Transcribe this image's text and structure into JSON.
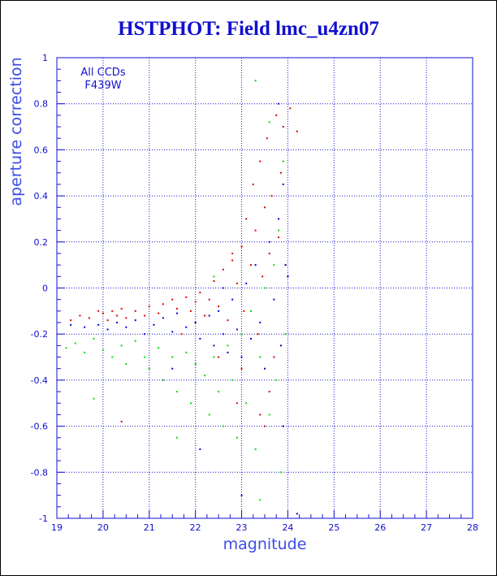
{
  "title": "HSTPHOT: Field lmc_u4zn07",
  "chart_data": {
    "type": "scatter",
    "title": "HSTPHOT: Field lmc_u4zn07",
    "xlabel": "magnitude",
    "ylabel": "aperture correction",
    "xlim": [
      19,
      28
    ],
    "ylim": [
      -1,
      1
    ],
    "xticks": [
      "19",
      "20",
      "21",
      "22",
      "23",
      "24",
      "25",
      "26",
      "27",
      "28"
    ],
    "yticks": [
      "-1",
      "-0.8",
      "-0.6",
      "-0.4",
      "-0.2",
      "0",
      "0.2",
      "0.4",
      "0.6",
      "0.8",
      "1"
    ],
    "grid": true,
    "annotations": [
      "All CCDs",
      "F439W"
    ],
    "colors": {
      "axes": "#1010d0",
      "grid": "#1a1ad0",
      "title": "#1010d0",
      "label": "#3c4ce8"
    },
    "series": [
      {
        "color": "#e00000",
        "points": [
          [
            19.3,
            -0.14
          ],
          [
            19.5,
            -0.12
          ],
          [
            19.7,
            -0.13
          ],
          [
            19.9,
            -0.1
          ],
          [
            20.0,
            -0.11
          ],
          [
            20.1,
            -0.14
          ],
          [
            20.2,
            -0.1
          ],
          [
            20.3,
            -0.12
          ],
          [
            20.4,
            -0.09
          ],
          [
            20.5,
            -0.13
          ],
          [
            20.7,
            -0.1
          ],
          [
            20.9,
            -0.12
          ],
          [
            21.0,
            -0.08
          ],
          [
            21.2,
            -0.11
          ],
          [
            21.3,
            -0.07
          ],
          [
            21.5,
            -0.05
          ],
          [
            21.6,
            -0.09
          ],
          [
            21.8,
            -0.04
          ],
          [
            21.9,
            -0.1
          ],
          [
            22.0,
            -0.06
          ],
          [
            22.1,
            -0.02
          ],
          [
            22.2,
            -0.12
          ],
          [
            22.3,
            -0.05
          ],
          [
            22.4,
            0.03
          ],
          [
            22.5,
            -0.08
          ],
          [
            22.6,
            0.08
          ],
          [
            22.7,
            -0.14
          ],
          [
            22.8,
            0.12
          ],
          [
            22.9,
            0.02
          ],
          [
            23.0,
            0.18
          ],
          [
            23.05,
            -0.1
          ],
          [
            23.1,
            0.3
          ],
          [
            23.2,
            0.1
          ],
          [
            23.25,
            0.45
          ],
          [
            23.3,
            0.25
          ],
          [
            23.35,
            -0.2
          ],
          [
            23.4,
            0.55
          ],
          [
            23.45,
            0.05
          ],
          [
            23.5,
            0.35
          ],
          [
            23.55,
            0.65
          ],
          [
            23.6,
            0.15
          ],
          [
            23.65,
            0.4
          ],
          [
            23.7,
            -0.3
          ],
          [
            23.75,
            0.75
          ],
          [
            23.8,
            0.22
          ],
          [
            23.85,
            0.5
          ],
          [
            23.9,
            0.7
          ],
          [
            23.95,
            0.1
          ],
          [
            24.05,
            0.78
          ],
          [
            24.2,
            0.68
          ],
          [
            23.4,
            -0.55
          ],
          [
            23.5,
            -0.6
          ],
          [
            22.9,
            -0.5
          ],
          [
            22.5,
            -0.3
          ],
          [
            21.7,
            -0.2
          ],
          [
            20.4,
            -0.58
          ],
          [
            23.0,
            -0.35
          ],
          [
            23.6,
            -0.45
          ],
          [
            22.8,
            0.15
          ]
        ]
      },
      {
        "color": "#0000e0",
        "points": [
          [
            19.3,
            -0.16
          ],
          [
            19.6,
            -0.17
          ],
          [
            19.9,
            -0.16
          ],
          [
            20.1,
            -0.18
          ],
          [
            20.3,
            -0.15
          ],
          [
            20.5,
            -0.17
          ],
          [
            20.7,
            -0.14
          ],
          [
            20.9,
            -0.2
          ],
          [
            21.1,
            -0.16
          ],
          [
            21.3,
            -0.13
          ],
          [
            21.5,
            -0.19
          ],
          [
            21.6,
            -0.11
          ],
          [
            21.8,
            -0.17
          ],
          [
            22.0,
            -0.15
          ],
          [
            22.1,
            -0.22
          ],
          [
            22.3,
            -0.12
          ],
          [
            22.4,
            -0.25
          ],
          [
            22.5,
            -0.1
          ],
          [
            22.6,
            -0.2
          ],
          [
            22.7,
            -0.28
          ],
          [
            22.8,
            -0.05
          ],
          [
            22.9,
            -0.18
          ],
          [
            23.0,
            -0.3
          ],
          [
            23.1,
            0.02
          ],
          [
            23.2,
            -0.22
          ],
          [
            23.3,
            0.1
          ],
          [
            23.4,
            -0.15
          ],
          [
            23.5,
            -0.35
          ],
          [
            23.6,
            0.2
          ],
          [
            23.7,
            -0.05
          ],
          [
            23.8,
            0.3
          ],
          [
            23.85,
            -0.25
          ],
          [
            23.9,
            0.45
          ],
          [
            23.95,
            0.1
          ],
          [
            23.8,
            0.8
          ],
          [
            24.0,
            0.05
          ],
          [
            24.2,
            -0.98
          ],
          [
            22.1,
            -0.7
          ],
          [
            21.5,
            -0.35
          ],
          [
            23.0,
            -0.9
          ],
          [
            23.9,
            -0.6
          ],
          [
            22.6,
            0.0
          ]
        ]
      },
      {
        "color": "#00dd00",
        "points": [
          [
            19.2,
            -0.26
          ],
          [
            19.4,
            -0.24
          ],
          [
            19.6,
            -0.28
          ],
          [
            19.8,
            -0.22
          ],
          [
            20.0,
            -0.27
          ],
          [
            20.2,
            -0.3
          ],
          [
            20.4,
            -0.25
          ],
          [
            20.5,
            -0.33
          ],
          [
            20.7,
            -0.23
          ],
          [
            20.9,
            -0.3
          ],
          [
            21.0,
            -0.35
          ],
          [
            21.2,
            -0.26
          ],
          [
            21.3,
            -0.4
          ],
          [
            21.5,
            -0.3
          ],
          [
            21.6,
            -0.45
          ],
          [
            21.8,
            -0.28
          ],
          [
            21.9,
            -0.5
          ],
          [
            22.0,
            -0.33
          ],
          [
            22.2,
            -0.38
          ],
          [
            22.3,
            -0.55
          ],
          [
            22.4,
            -0.3
          ],
          [
            22.5,
            -0.45
          ],
          [
            22.6,
            -0.6
          ],
          [
            22.7,
            -0.25
          ],
          [
            22.8,
            -0.4
          ],
          [
            22.9,
            -0.65
          ],
          [
            23.0,
            -0.2
          ],
          [
            23.1,
            -0.5
          ],
          [
            23.2,
            -0.1
          ],
          [
            23.3,
            -0.7
          ],
          [
            23.4,
            -0.3
          ],
          [
            23.5,
            0.0
          ],
          [
            23.6,
            -0.55
          ],
          [
            23.7,
            0.1
          ],
          [
            23.75,
            -0.4
          ],
          [
            23.8,
            0.25
          ],
          [
            23.85,
            -0.8
          ],
          [
            23.9,
            0.55
          ],
          [
            23.95,
            -0.2
          ],
          [
            23.3,
            0.9
          ],
          [
            23.6,
            0.72
          ],
          [
            19.8,
            -0.48
          ],
          [
            21.6,
            -0.65
          ],
          [
            23.4,
            -0.92
          ],
          [
            22.4,
            0.05
          ]
        ]
      }
    ]
  }
}
